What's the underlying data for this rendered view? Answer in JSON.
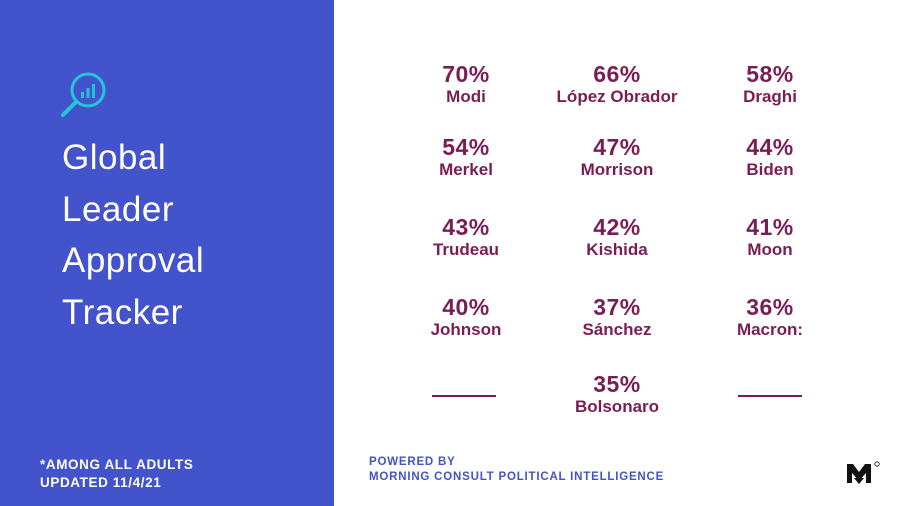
{
  "panel": {
    "title_lines": [
      "Global",
      "Leader",
      "Approval",
      "Tracker"
    ],
    "footnote_lines": [
      "*AMONG ALL ADULTS",
      "UPDATED 11/4/21"
    ],
    "icon": "search-chart-icon"
  },
  "leaders": [
    {
      "pct": "70%",
      "name": "Modi"
    },
    {
      "pct": "66%",
      "name": "López Obrador"
    },
    {
      "pct": "58%",
      "name": "Draghi"
    },
    {
      "pct": "54%",
      "name": "Merkel"
    },
    {
      "pct": "47%",
      "name": "Morrison"
    },
    {
      "pct": "44%",
      "name": "Biden"
    },
    {
      "pct": "43%",
      "name": "Trudeau"
    },
    {
      "pct": "42%",
      "name": "Kishida"
    },
    {
      "pct": "41%",
      "name": "Moon"
    },
    {
      "pct": "40%",
      "name": "Johnson"
    },
    {
      "pct": "37%",
      "name": "Sánchez"
    },
    {
      "pct": "36%",
      "name": "Macron:"
    },
    {
      "pct": "35%",
      "name": "Bolsonaro"
    }
  ],
  "powered_by": [
    "POWERED BY",
    "MORNING CONSULT POLITICAL INTELLIGENCE"
  ],
  "colors": {
    "panel_blue": "#4353cc",
    "icon_teal": "#23c6d8",
    "value_maroon": "#7a1d55",
    "background": "#ffffff"
  },
  "logo": "morning-consult-logo"
}
